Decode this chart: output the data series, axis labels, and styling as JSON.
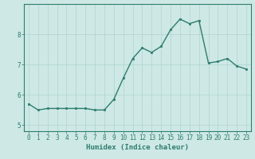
{
  "x": [
    0,
    1,
    2,
    3,
    4,
    5,
    6,
    7,
    8,
    9,
    10,
    11,
    12,
    13,
    14,
    15,
    16,
    17,
    18,
    19,
    20,
    21,
    22,
    23
  ],
  "y": [
    5.7,
    5.5,
    5.55,
    5.55,
    5.55,
    5.55,
    5.55,
    5.5,
    5.5,
    5.85,
    6.55,
    7.2,
    7.55,
    7.4,
    7.6,
    8.15,
    8.5,
    8.35,
    8.45,
    7.05,
    7.1,
    7.2,
    6.95,
    6.85
  ],
  "ylim": [
    4.8,
    9.0
  ],
  "xlim": [
    -0.5,
    23.5
  ],
  "yticks": [
    5,
    6,
    7,
    8
  ],
  "xticks": [
    0,
    1,
    2,
    3,
    4,
    5,
    6,
    7,
    8,
    9,
    10,
    11,
    12,
    13,
    14,
    15,
    16,
    17,
    18,
    19,
    20,
    21,
    22,
    23
  ],
  "xlabel": "Humidex (Indice chaleur)",
  "line_color": "#2e7d6e",
  "marker_color": "#2e7d6e",
  "bg_color": "#cde8e5",
  "grid_color": "#b0d4d0",
  "axis_color": "#2e7d6e",
  "tick_label_color": "#2e7d6e",
  "xlabel_color": "#2e7d6e",
  "marker": "s",
  "markersize": 2.0,
  "linewidth": 1.0
}
